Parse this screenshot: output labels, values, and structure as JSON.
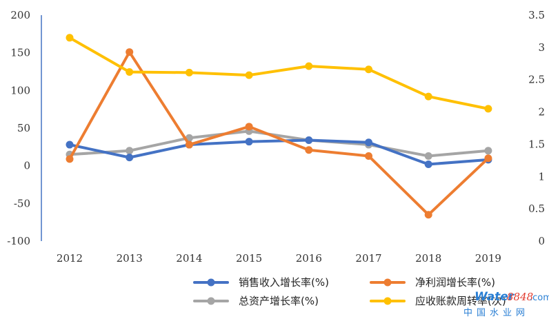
{
  "chart_data": {
    "type": "line",
    "title": "",
    "categories": [
      "2012",
      "2013",
      "2014",
      "2015",
      "2016",
      "2017",
      "2018",
      "2019"
    ],
    "y_left": {
      "ylim": [
        -100,
        200
      ],
      "ticks": [
        "200",
        "150",
        "100",
        "50",
        "0",
        "-50",
        "-100"
      ]
    },
    "y_right": {
      "ylim": [
        0,
        3.5
      ],
      "ticks": [
        "3.5",
        "3",
        "2.5",
        "2",
        "1.5",
        "1",
        "0.5",
        "0"
      ]
    },
    "series": [
      {
        "name": "销售收入增长率(%)",
        "axis": "left",
        "color": "#4472c4",
        "values": [
          28,
          11,
          28,
          32,
          34,
          31,
          2,
          8
        ]
      },
      {
        "name": "净利润增长率(%)",
        "axis": "left",
        "color": "#ed7d31",
        "values": [
          9,
          151,
          28,
          52,
          21,
          13,
          -65,
          10
        ]
      },
      {
        "name": "总资产增长率(%)",
        "axis": "left",
        "color": "#a5a5a5",
        "values": [
          15,
          20,
          37,
          46,
          34,
          28,
          13,
          20
        ]
      },
      {
        "name": "应收账款周转率(次)",
        "axis": "right",
        "color": "#ffc000",
        "values": [
          3.15,
          2.62,
          2.61,
          2.57,
          2.71,
          2.66,
          2.24,
          2.05
        ]
      }
    ],
    "legend": "bottom-right"
  },
  "watermark": {
    "part1": "Water",
    "part2": "8848",
    "part3": ".com",
    "sub": "中国水业网"
  },
  "colors": {
    "left_axis": "#4472c4",
    "right_axis": "#888888"
  }
}
